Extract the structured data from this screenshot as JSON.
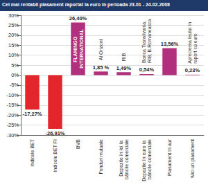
{
  "chart_data": {
    "type": "bar",
    "title": "Cel mai rentabil plasament raportat la euro în perioada 23.01 - 24.02.2008",
    "categories": [
      "Indicele BET",
      "Indicele BET FI",
      "BVB",
      "Fonduri mutuale",
      "Depozite în lei la băncile comerciale",
      "Depozite în euro la băncile comerciale",
      "Plasament în aur",
      "Nici un plasament"
    ],
    "values": [
      -17.27,
      -26.91,
      26.4,
      1.85,
      1.49,
      0.54,
      13.56,
      0.23
    ],
    "value_labels": [
      "-17,27%",
      "-26,91%",
      "26,40%",
      "1,85 %",
      "1,49%",
      "0,54%",
      "13,56%",
      "0,23%"
    ],
    "bar_annotations": [
      null,
      null,
      "FLAMINGO INTERNATIONAL",
      "Al Orizont",
      "RIB",
      "Banca Transilvania, RIB, B.Romaneasca",
      null,
      "Aprecierea leului în raport cu euro"
    ],
    "colors": [
      "#e3262b",
      "#e3262b",
      "#b0307e",
      "#b0307e",
      "#b0307e",
      "#b0307e",
      "#b0307e",
      "#b0307e"
    ],
    "ylim": [
      -30,
      30
    ],
    "yticks": [
      {
        "value": -30,
        "label": "-30%"
      },
      {
        "value": -25,
        "label": "-25%"
      },
      {
        "value": -20,
        "label": "-20%"
      },
      {
        "value": -15,
        "label": "-15%"
      },
      {
        "value": -10,
        "label": "-10%"
      },
      {
        "value": -5,
        "label": "-5%"
      },
      {
        "value": 0,
        "label": "0%"
      },
      {
        "value": 5,
        "label": "5%"
      },
      {
        "value": 10,
        "label": "10%"
      },
      {
        "value": 15,
        "label": "15%"
      },
      {
        "value": 20,
        "label": "20%"
      },
      {
        "value": 25,
        "label": "25%"
      },
      {
        "value": 30,
        "label": "30%"
      }
    ],
    "grid": true,
    "data_labels": true
  }
}
